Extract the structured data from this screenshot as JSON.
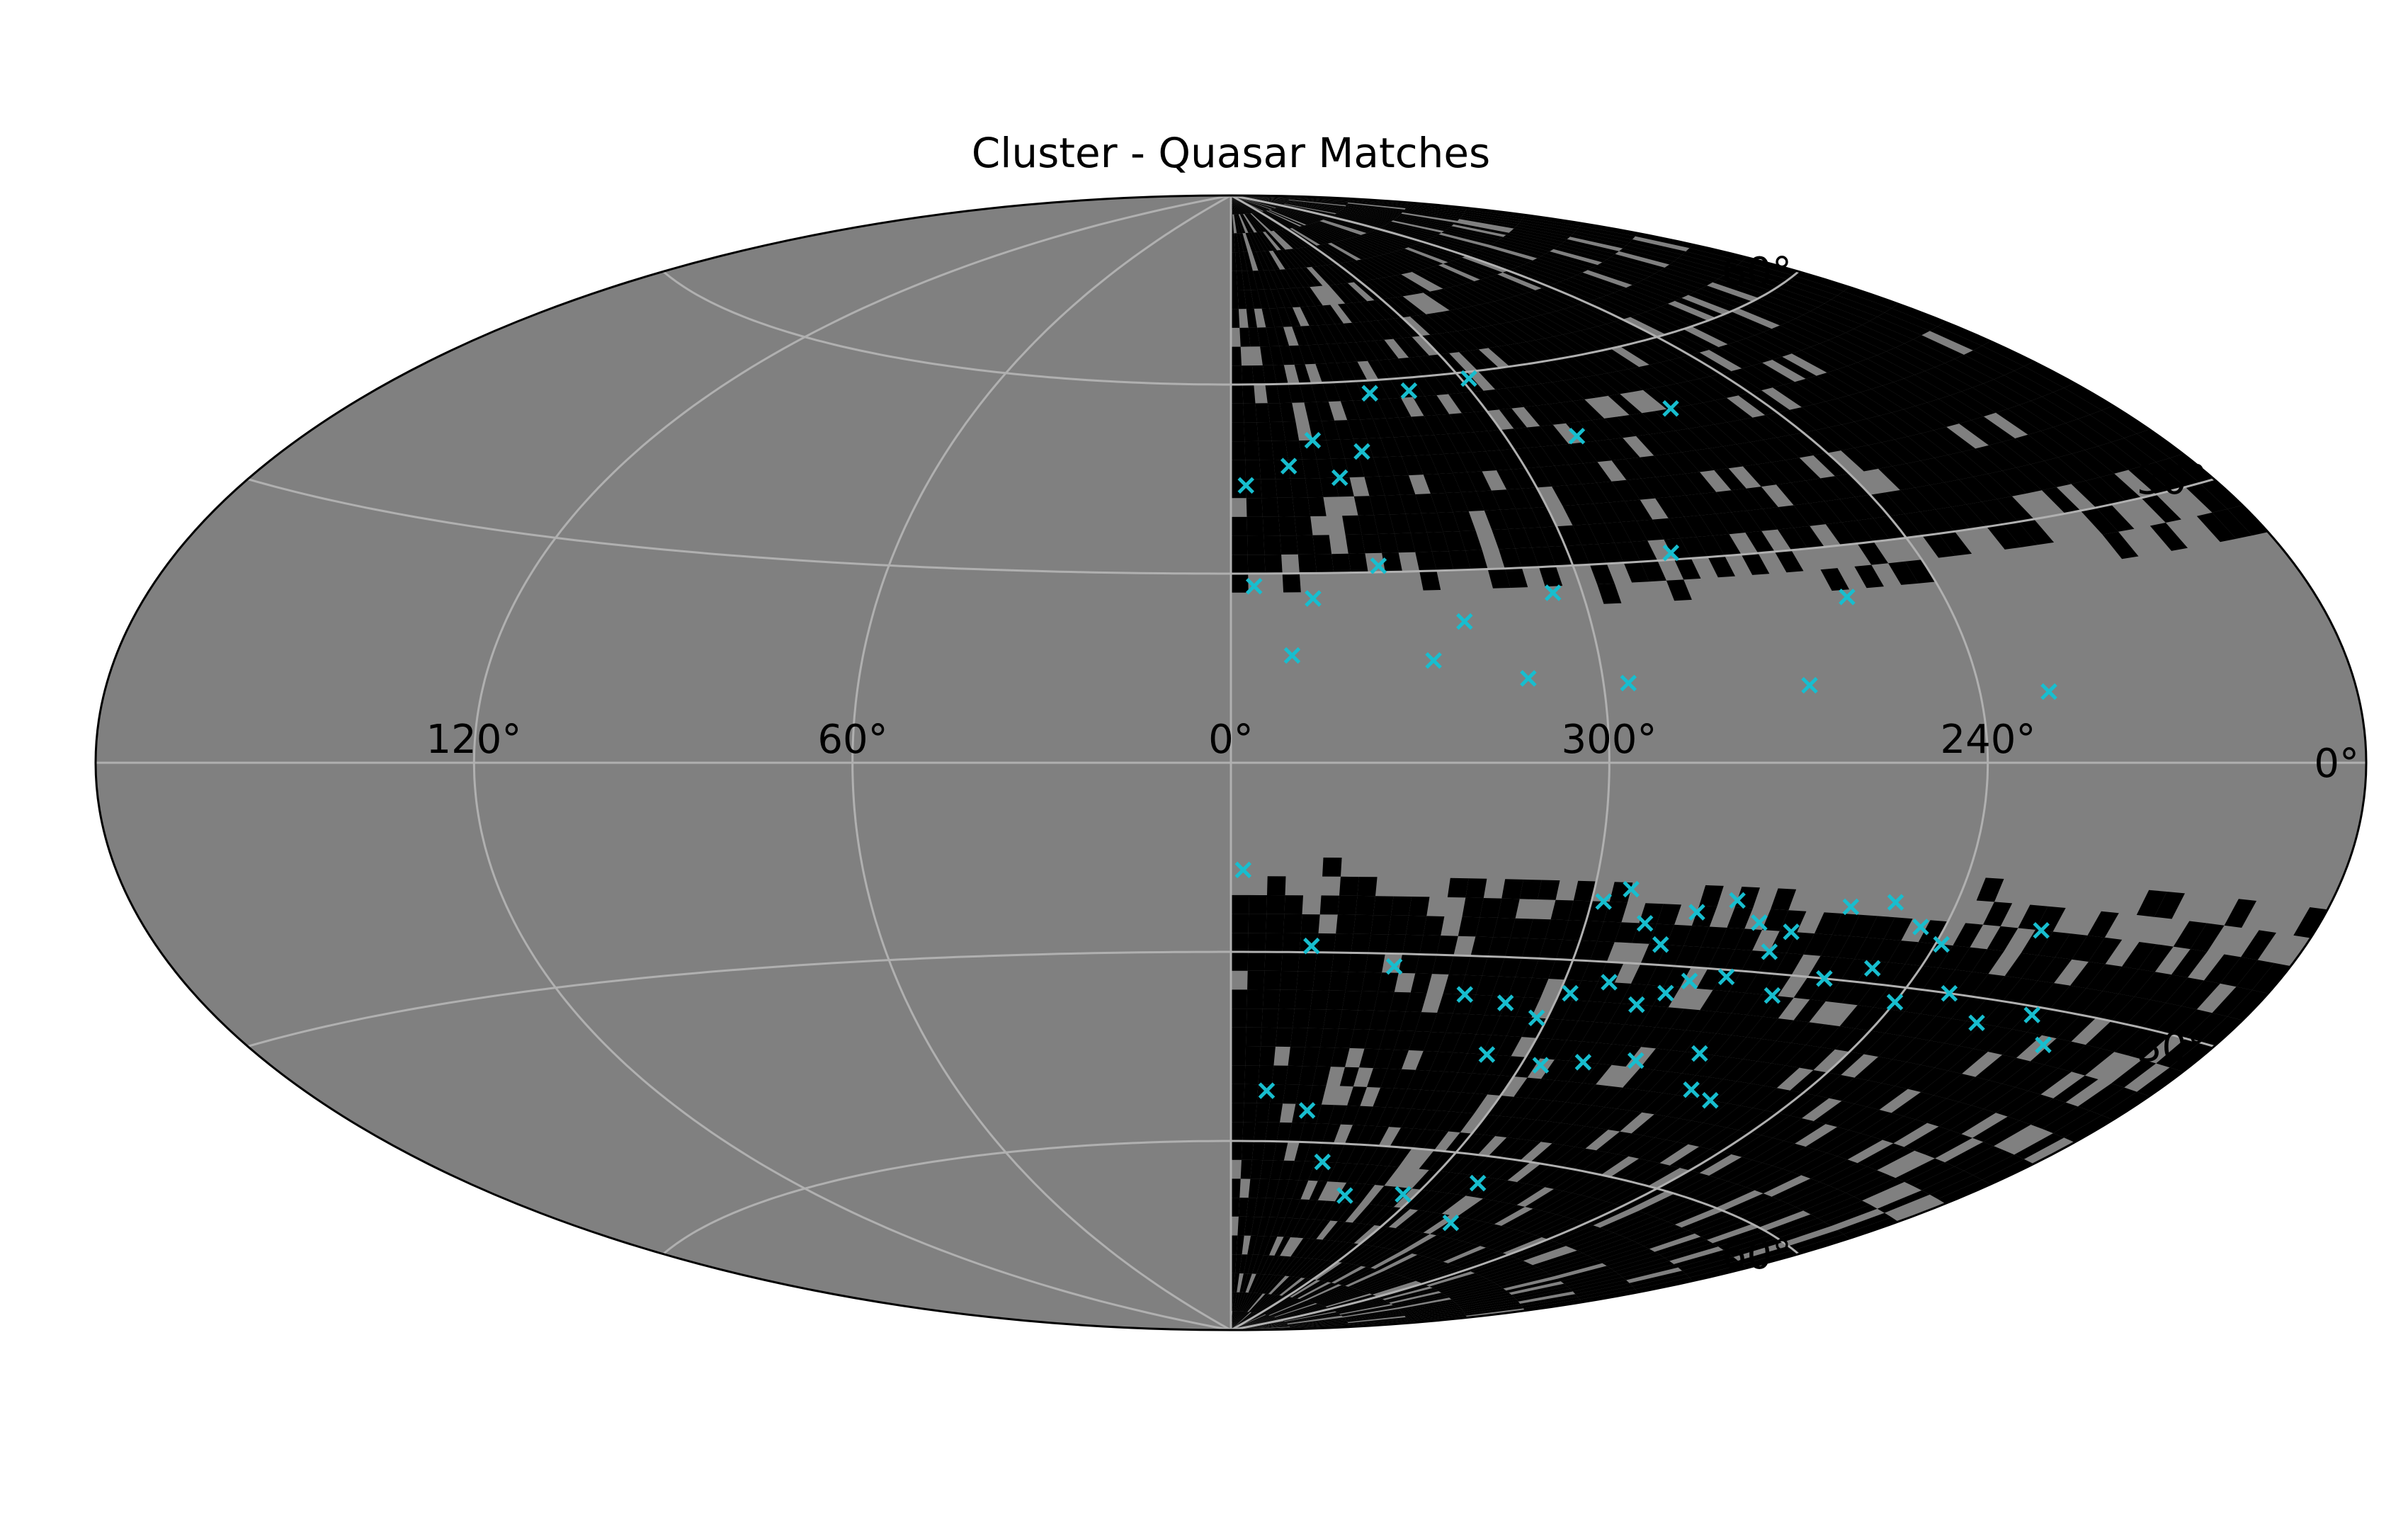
{
  "chart_data": {
    "type": "heatmap",
    "projection": "aitoff",
    "title": "Cluster - Quasar Matches",
    "xlabel": "",
    "ylabel": "",
    "x_ticks": [
      "120°",
      "60°",
      "0°",
      "300°",
      "240°"
    ],
    "y_ticks": [
      "60°",
      "30°",
      "0°",
      "-30°",
      "-60°"
    ],
    "grid": true,
    "background_color": "#808080",
    "colormap": "plasma",
    "xlim": [
      -180,
      180
    ],
    "ylim": [
      -90,
      90
    ],
    "heatmap_extent_x": [
      0,
      -180
    ],
    "blocked_band_deg": [
      -20,
      28
    ],
    "blocked_band_note": "no data near 0° latitude",
    "series": [
      {
        "type": "scatter",
        "marker": "x",
        "color": "#17becf",
        "points": [
          [
            -3,
            44
          ],
          [
            -12,
            47
          ],
          [
            -18,
            51
          ],
          [
            -22,
            45
          ],
          [
            -28,
            49
          ],
          [
            -35,
            58
          ],
          [
            -45,
            58
          ],
          [
            -62,
            59
          ],
          [
            -75,
            49
          ],
          [
            -100,
            51
          ],
          [
            -4,
            28
          ],
          [
            -14,
            26
          ],
          [
            -26,
            31
          ],
          [
            -39,
            22
          ],
          [
            -55,
            26
          ],
          [
            -78,
            31
          ],
          [
            -104,
            23
          ],
          [
            -10,
            17
          ],
          [
            -33,
            16
          ],
          [
            -48,
            13
          ],
          [
            -64,
            12
          ],
          [
            -93,
            11
          ],
          [
            -131,
            9
          ],
          [
            -2,
            -17
          ],
          [
            -14,
            -29
          ],
          [
            -29,
            -32
          ],
          [
            -43,
            -36
          ],
          [
            -51,
            -37
          ],
          [
            -58,
            -39
          ],
          [
            -62,
            -35
          ],
          [
            -68,
            -33
          ],
          [
            -75,
            -36
          ],
          [
            -79,
            -34
          ],
          [
            -82,
            -32
          ],
          [
            -88,
            -31
          ],
          [
            -93,
            -27
          ],
          [
            -98,
            -33
          ],
          [
            -105,
            -30
          ],
          [
            -112,
            -28
          ],
          [
            -120,
            -32
          ],
          [
            -128,
            -30
          ],
          [
            -137,
            -33
          ],
          [
            -145,
            -31
          ],
          [
            -152,
            -34
          ],
          [
            -62,
            -21
          ],
          [
            -66,
            -19
          ],
          [
            -70,
            -24
          ],
          [
            -74,
            -27
          ],
          [
            -78,
            -22
          ],
          [
            -84,
            -20
          ],
          [
            -89,
            -23
          ],
          [
            -95,
            -24
          ],
          [
            -103,
            -20
          ],
          [
            -110,
            -19
          ],
          [
            -116,
            -22
          ],
          [
            -121,
            -24
          ],
          [
            -136,
            -21
          ],
          [
            -52,
            -45
          ],
          [
            -64,
            -46
          ],
          [
            -72,
            -45
          ],
          [
            -82,
            -44
          ],
          [
            -93,
            -42
          ],
          [
            -98,
            -47
          ],
          [
            -104,
            -48
          ],
          [
            -8,
            -52
          ],
          [
            -18,
            -55
          ],
          [
            -26,
            -63
          ],
          [
            -38,
            -68
          ],
          [
            -56,
            -67
          ],
          [
            -74,
            -64
          ],
          [
            -82,
            -70
          ]
        ]
      }
    ]
  }
}
